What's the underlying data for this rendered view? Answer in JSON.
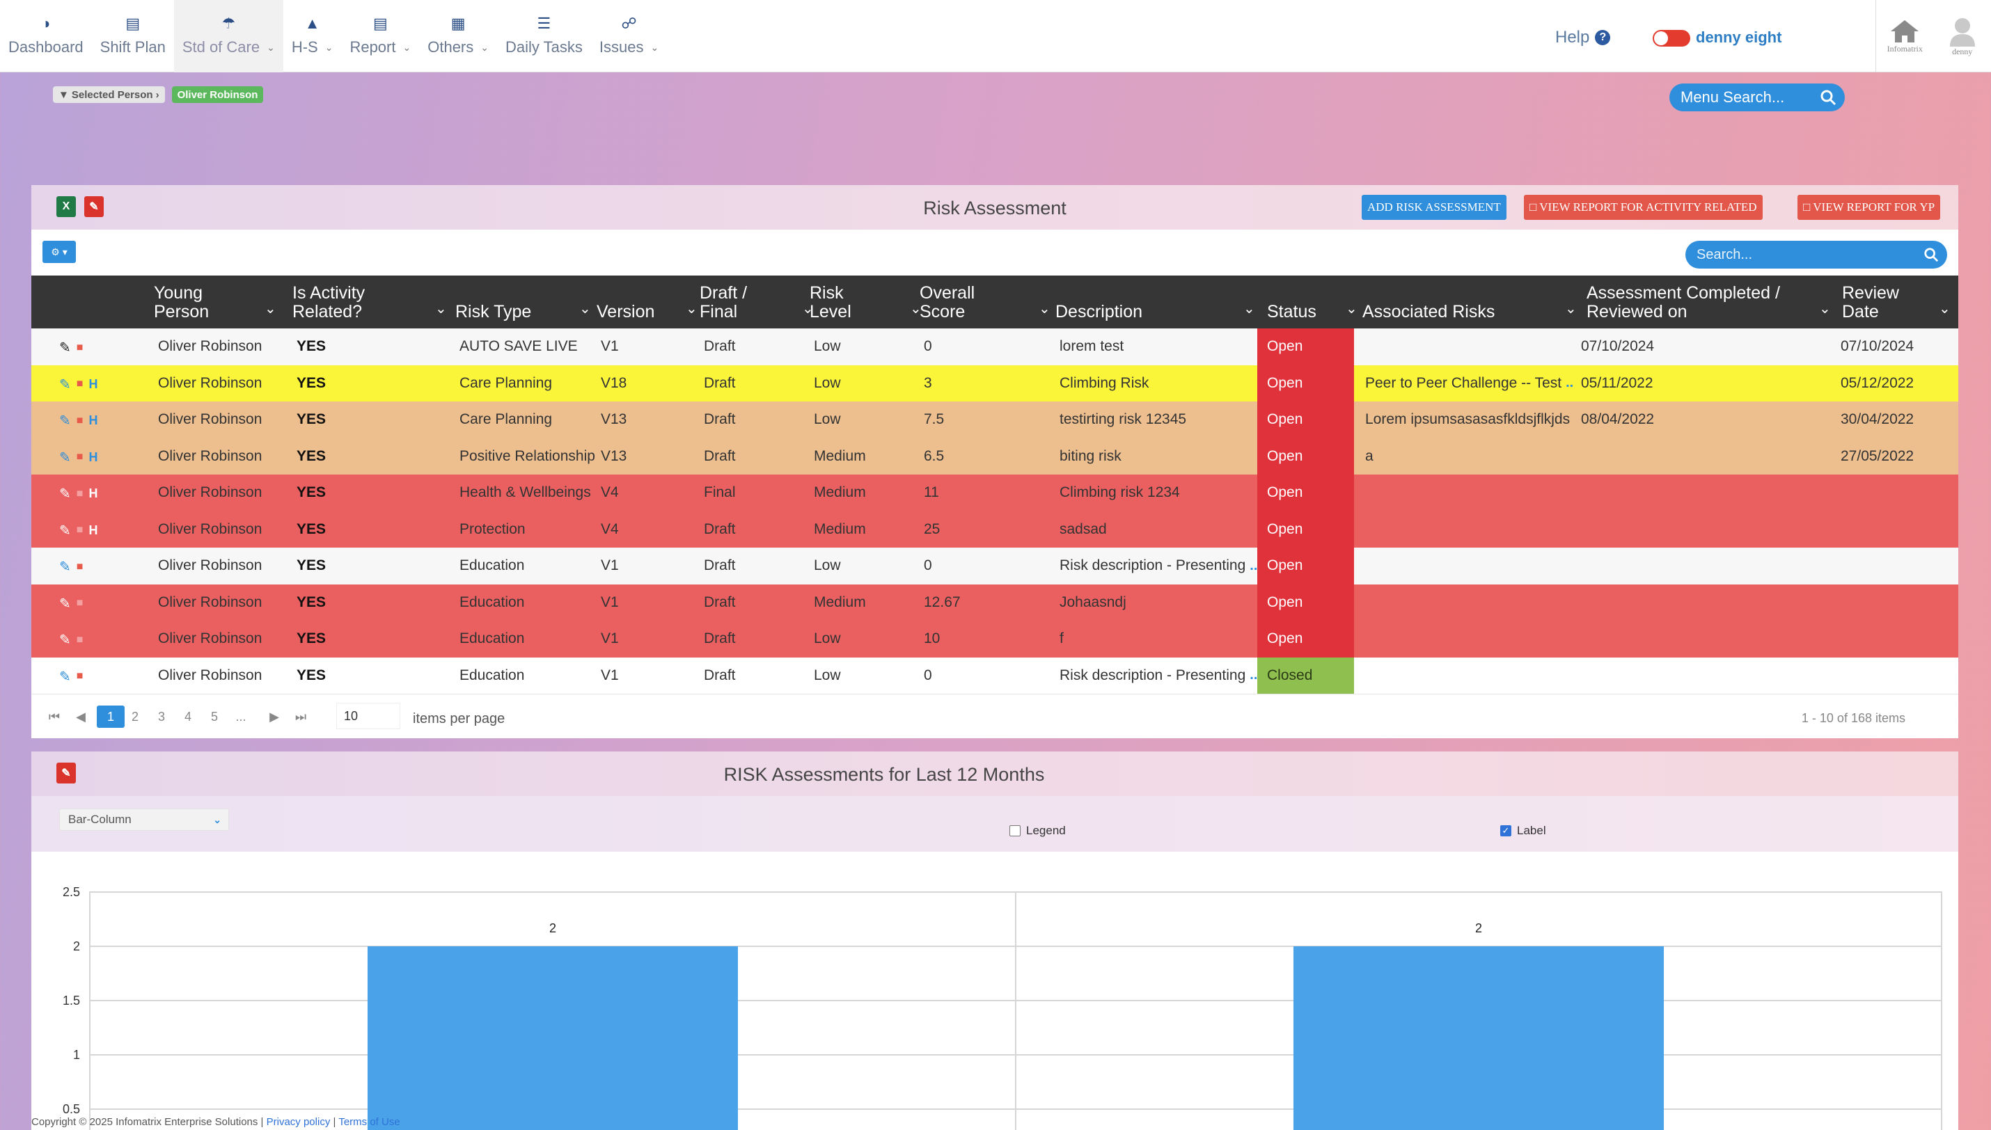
{
  "nav": {
    "items": [
      {
        "label": "Dashboard",
        "icon": "dashboard-icon",
        "dropdown": false
      },
      {
        "label": "Shift Plan",
        "icon": "shift-plan-icon",
        "dropdown": false
      },
      {
        "label": "Std of Care",
        "icon": "umbrella-icon",
        "dropdown": true
      },
      {
        "label": "H-S",
        "icon": "extinguisher-icon",
        "dropdown": true
      },
      {
        "label": "Report",
        "icon": "report-icon",
        "dropdown": true
      },
      {
        "label": "Others",
        "icon": "grid-icon",
        "dropdown": true
      },
      {
        "label": "Daily Tasks",
        "icon": "tasks-icon",
        "dropdown": false
      },
      {
        "label": "Issues",
        "icon": "issues-icon",
        "dropdown": true
      }
    ],
    "help": "Help",
    "user": "denny eight",
    "home_label": "Infomatrix",
    "avatar_label": "denny"
  },
  "breadcrumb": {
    "selected_label": "Selected Person",
    "person": "Oliver Robinson"
  },
  "menu_search": {
    "placeholder": "Menu Search..."
  },
  "risk_panel": {
    "title": "Risk Assessment",
    "add_button": "ADD RISK ASSESSMENT",
    "report_activity_button": "VIEW REPORT FOR ACTIVITY RELATED",
    "report_yp_button": "VIEW REPORT FOR YP",
    "search_placeholder": "Search...",
    "columns": [
      {
        "l1": "Young",
        "l2": "Person"
      },
      {
        "l1": "Is Activity",
        "l2": "Related?"
      },
      {
        "l1": "",
        "l2": "Risk Type"
      },
      {
        "l1": "",
        "l2": "Version"
      },
      {
        "l1": "Draft /",
        "l2": "Final"
      },
      {
        "l1": "Risk",
        "l2": "Level"
      },
      {
        "l1": "Overall",
        "l2": "Score"
      },
      {
        "l1": "",
        "l2": "Description"
      },
      {
        "l1": "",
        "l2": "Status"
      },
      {
        "l1": "",
        "l2": "Associated Risks"
      },
      {
        "l1": "Assessment Completed /",
        "l2": "Reviewed on"
      },
      {
        "l1": "Review",
        "l2": "Date"
      }
    ],
    "rows": [
      {
        "person": "Oliver Robinson",
        "activity": "YES",
        "type": "AUTO SAVE LIVE",
        "version": "V1",
        "draft": "Draft",
        "level": "Low",
        "score": "0",
        "desc": "lorem test",
        "desc_more": "",
        "status": "Open",
        "assoc": "",
        "assoc_more": "",
        "completed": "07/10/2024",
        "review": "07/10/2024",
        "bg": "#f7f7f7",
        "status_bg": "#e0323b",
        "history": false
      },
      {
        "person": "Oliver Robinson",
        "activity": "YES",
        "type": "Care Planning",
        "version": "V18",
        "draft": "Draft",
        "level": "Low",
        "score": "3",
        "desc": "Climbing Risk",
        "desc_more": "",
        "status": "Open",
        "assoc": "Peer to Peer Challenge -- Test",
        "assoc_more": "...",
        "completed": "05/11/2022",
        "review": "05/12/2022",
        "bg": "#fbf53a",
        "status_bg": "#e0323b",
        "history": true
      },
      {
        "person": "Oliver Robinson",
        "activity": "YES",
        "type": "Care Planning",
        "version": "V13",
        "draft": "Draft",
        "level": "Low",
        "score": "7.5",
        "desc": "testirting risk 12345",
        "desc_more": "",
        "status": "Open",
        "assoc": "Lorem ipsumsasasasfkldsjflkjds",
        "assoc_more": "...",
        "completed": "08/04/2022",
        "review": "30/04/2022",
        "bg": "#edbe8e",
        "status_bg": "#e0323b",
        "history": true
      },
      {
        "person": "Oliver Robinson",
        "activity": "YES",
        "type": "Positive Relationship",
        "version": "V13",
        "draft": "Draft",
        "level": "Medium",
        "score": "6.5",
        "desc": "biting risk",
        "desc_more": "",
        "status": "Open",
        "assoc": "a",
        "assoc_more": "",
        "completed": "",
        "review": "27/05/2022",
        "bg": "#edbe8e",
        "status_bg": "#e0323b",
        "history": true
      },
      {
        "person": "Oliver Robinson",
        "activity": "YES",
        "type": "Health & Wellbeings",
        "version": "V4",
        "draft": "Final",
        "level": "Medium",
        "score": "11",
        "desc": "Climbing risk 1234",
        "desc_more": "",
        "status": "Open",
        "assoc": "",
        "assoc_more": "",
        "completed": "",
        "review": "",
        "bg": "#ea6060",
        "status_bg": "#e0323b",
        "history": true
      },
      {
        "person": "Oliver Robinson",
        "activity": "YES",
        "type": "Protection",
        "version": "V4",
        "draft": "Draft",
        "level": "Medium",
        "score": "25",
        "desc": "sadsad",
        "desc_more": "",
        "status": "Open",
        "assoc": "",
        "assoc_more": "",
        "completed": "",
        "review": "",
        "bg": "#ea6060",
        "status_bg": "#e0323b",
        "history": true
      },
      {
        "person": "Oliver Robinson",
        "activity": "YES",
        "type": "Education",
        "version": "V1",
        "draft": "Draft",
        "level": "Low",
        "score": "0",
        "desc": "Risk description - Presenting",
        "desc_more": "...",
        "status": "Open",
        "assoc": "",
        "assoc_more": "",
        "completed": "",
        "review": "",
        "bg": "#f7f7f7",
        "status_bg": "#e0323b",
        "history": false
      },
      {
        "person": "Oliver Robinson",
        "activity": "YES",
        "type": "Education",
        "version": "V1",
        "draft": "Draft",
        "level": "Medium",
        "score": "12.67",
        "desc": "Johaasndj",
        "desc_more": "",
        "status": "Open",
        "assoc": "",
        "assoc_more": "",
        "completed": "",
        "review": "",
        "bg": "#ea6060",
        "status_bg": "#e0323b",
        "history": false
      },
      {
        "person": "Oliver Robinson",
        "activity": "YES",
        "type": "Education",
        "version": "V1",
        "draft": "Draft",
        "level": "Low",
        "score": "10",
        "desc": "f",
        "desc_more": "",
        "status": "Open",
        "assoc": "",
        "assoc_more": "",
        "completed": "",
        "review": "",
        "bg": "#ea6060",
        "status_bg": "#e0323b",
        "history": false
      },
      {
        "person": "Oliver Robinson",
        "activity": "YES",
        "type": "Education",
        "version": "V1",
        "draft": "Draft",
        "level": "Low",
        "score": "0",
        "desc": "Risk description - Presenting",
        "desc_more": "...",
        "status": "Closed",
        "assoc": "",
        "assoc_more": "",
        "completed": "",
        "review": "",
        "bg": "#ffffff",
        "status_bg": "#8fc04f",
        "history": false
      }
    ],
    "pager": {
      "pages": [
        "1",
        "2",
        "3",
        "4",
        "5",
        "..."
      ],
      "current": "1",
      "per_page": "10",
      "per_page_label": "items per page",
      "info": "1 - 10 of 168 items"
    }
  },
  "chart_panel": {
    "title": "RISK Assessments for Last 12 Months",
    "chart_type_select": "Bar-Column",
    "legend_label": "Legend",
    "legend_checked": false,
    "label_label": "Label",
    "label_checked": true
  },
  "chart_data": {
    "type": "bar",
    "categories": [
      "",
      ""
    ],
    "values": [
      2,
      2
    ],
    "data_labels": [
      "2",
      "2"
    ],
    "title": "",
    "xlabel": "",
    "ylabel": "",
    "ylim": [
      0,
      2.5
    ],
    "yticks": [
      "2.5",
      "2",
      "1.5",
      "1",
      "0.5"
    ],
    "grid": true,
    "bar_color": "#4aa3e8"
  },
  "footer": {
    "copyright": "Copyright © 2025 Infomatrix Enterprise Solutions |",
    "privacy": "Privacy policy",
    "sep": "|",
    "terms": "Terms of Use"
  }
}
